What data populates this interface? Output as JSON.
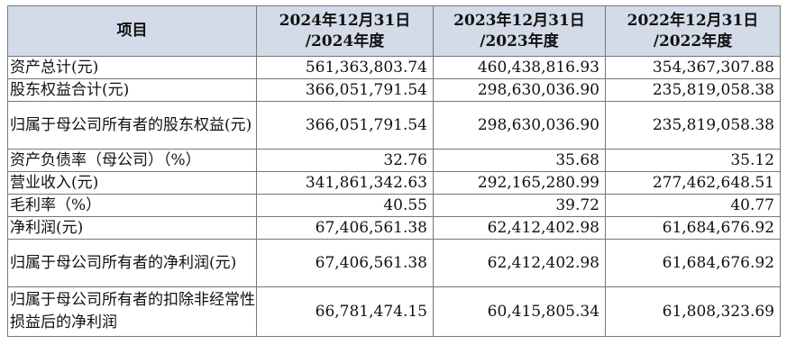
{
  "table": {
    "headers": [
      {
        "lines": [
          "项目"
        ]
      },
      {
        "lines": [
          "2024年12月31日",
          "/2024年度"
        ]
      },
      {
        "lines": [
          "2023年12月31日",
          "/2023年度"
        ]
      },
      {
        "lines": [
          "2022年12月31日",
          "/2022年度"
        ]
      }
    ],
    "rows": [
      {
        "label": "资产总计(元)",
        "values": [
          "561,363,803.74",
          "460,438,816.93",
          "354,367,307.88"
        ]
      },
      {
        "label": "股东权益合计(元)",
        "values": [
          "366,051,791.54",
          "298,630,036.90",
          "235,819,058.38"
        ]
      },
      {
        "label": "归属于母公司所有者的股东权益(元)",
        "values": [
          "366,051,791.54",
          "298,630,036.90",
          "235,819,058.38"
        ]
      },
      {
        "label": "资产负债率（母公司）（%）",
        "values": [
          "32.76",
          "35.68",
          "35.12"
        ]
      },
      {
        "label": "营业收入(元)",
        "values": [
          "341,861,342.63",
          "292,165,280.99",
          "277,462,648.51"
        ]
      },
      {
        "label": "毛利率（%）",
        "values": [
          "40.55",
          "39.72",
          "40.77"
        ]
      },
      {
        "label": "净利润(元)",
        "values": [
          "67,406,561.38",
          "62,412,402.98",
          "61,684,676.92"
        ]
      },
      {
        "label": "归属于母公司所有者的净利润(元)",
        "values": [
          "67,406,561.38",
          "62,412,402.98",
          "61,684,676.92"
        ]
      },
      {
        "label": "归属于母公司所有者的扣除非经常性损益后的净利润",
        "values": [
          "66,781,474.15",
          "60,415,805.34",
          "61,808,323.69"
        ]
      }
    ]
  }
}
